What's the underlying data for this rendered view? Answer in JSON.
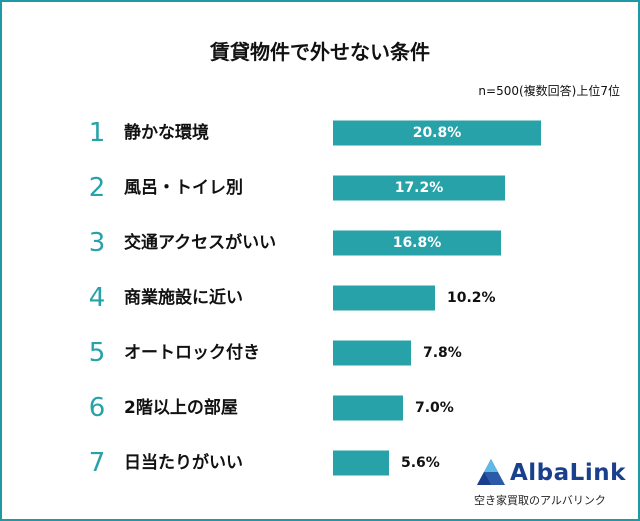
{
  "chart_data": {
    "type": "bar",
    "orientation": "horizontal",
    "title": "賃貸物件で外せない条件",
    "subtitle": "n=500(複数回答)上位7位",
    "ranks": [
      "1",
      "2",
      "3",
      "4",
      "5",
      "6",
      "7"
    ],
    "categories": [
      "静かな環境",
      "風呂・トイレ別",
      "交通アクセスがいい",
      "商業施設に近い",
      "オートロック付き",
      "2階以上の部屋",
      "日当たりがいい"
    ],
    "values": [
      20.8,
      17.2,
      16.8,
      10.2,
      7.8,
      7.0,
      5.6
    ],
    "value_labels": [
      "20.8%",
      "17.2%",
      "16.8%",
      "10.2%",
      "7.8%",
      "7.0%",
      "5.6%"
    ],
    "bar_color": "#26a2a8",
    "rank_color": "#26a2a8"
  },
  "brand": {
    "name": "AlbaLink",
    "tagline": "空き家買取のアルバリンク",
    "color": "#1a3f8c"
  }
}
